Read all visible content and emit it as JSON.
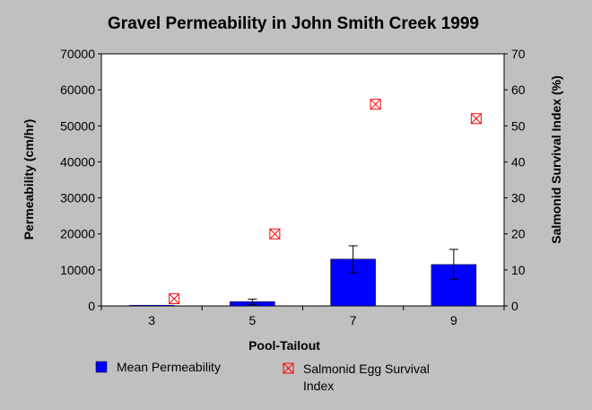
{
  "chart_data": {
    "type": "bar",
    "title": "Gravel Permeability in John Smith Creek 1999",
    "xlabel": "Pool-Tailout",
    "ylabel": "Permeability (cm/hr)",
    "y2label": "Salmonid Survival Index (%)",
    "categories": [
      "3",
      "5",
      "7",
      "9"
    ],
    "ylim": [
      0,
      70000
    ],
    "y2lim": [
      0,
      70
    ],
    "yticks": [
      "0",
      "10000",
      "20000",
      "30000",
      "40000",
      "50000",
      "60000",
      "70000"
    ],
    "y2ticks": [
      "0",
      "10",
      "20",
      "30",
      "40",
      "50",
      "60",
      "70"
    ],
    "series": [
      {
        "name": "Mean Permeability",
        "kind": "bar",
        "axis": "left",
        "color": "#0000ff",
        "values": [
          200,
          1200,
          13000,
          11500
        ],
        "error_low": [
          0,
          400,
          9200,
          7400
        ],
        "error_high": [
          0,
          1900,
          16700,
          15700
        ]
      },
      {
        "name": "Salmonid Egg Survival Index",
        "kind": "marker",
        "axis": "right",
        "color": "#ff0000",
        "values": [
          2,
          20,
          56,
          52
        ]
      }
    ],
    "legend_position": "bottom",
    "grid": false
  }
}
